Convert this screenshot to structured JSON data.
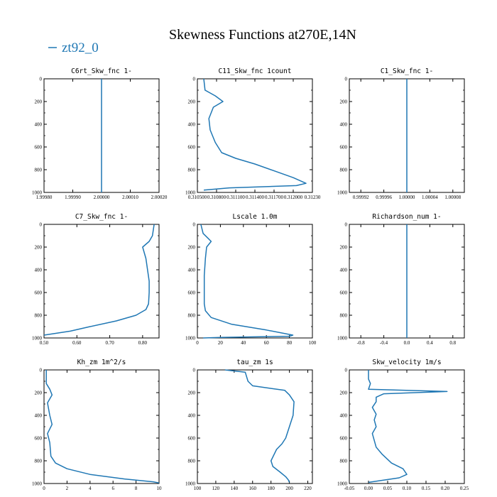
{
  "figure": {
    "title": "Skewness Functions at270E,14N",
    "legend": {
      "label": "zt92_0",
      "color": "#1f77b4"
    }
  },
  "chart_data": [
    {
      "type": "line",
      "title": "C6rt_Skw_fnc 1-",
      "xlim": [
        1.9998,
        2.0002
      ],
      "ylim": [
        1000,
        0
      ],
      "invert_y": true,
      "xticks": [
        "1.99980",
        "1.99990",
        "2.00000",
        "2.00010",
        "2.00020"
      ],
      "xtick_values": [
        1.9998,
        1.9999,
        2.0,
        2.0001,
        2.0002
      ],
      "yticks": [
        "0",
        "200",
        "400",
        "600",
        "800",
        "1000"
      ],
      "series": [
        {
          "x": [
            2.0,
            2.0
          ],
          "y": [
            0,
            1000
          ]
        }
      ]
    },
    {
      "type": "line",
      "title": "C11_Skw_fnc 1count",
      "xlim": [
        0.3105,
        0.3123
      ],
      "ylim": [
        1000,
        0
      ],
      "invert_y": true,
      "xticks": [
        "0.310500",
        "0.310800",
        "0.311100",
        "0.311400",
        "0.311700",
        "0.312000",
        "0.31230"
      ],
      "xtick_values": [
        0.3105,
        0.3108,
        0.3111,
        0.3114,
        0.3117,
        0.312,
        0.3123
      ],
      "yticks": [
        "0",
        "200",
        "400",
        "600",
        "800",
        "1000"
      ],
      "series": [
        {
          "x": [
            0.3106,
            0.31062,
            0.31078,
            0.3109,
            0.31075,
            0.31068,
            0.3107,
            0.31078,
            0.31088,
            0.3111,
            0.3114,
            0.3117,
            0.312,
            0.3122,
            0.31205,
            0.311,
            0.3106
          ],
          "y": [
            0,
            100,
            150,
            200,
            250,
            350,
            450,
            560,
            650,
            700,
            750,
            810,
            870,
            920,
            940,
            960,
            980
          ]
        }
      ]
    },
    {
      "type": "line",
      "title": "C1_Skw_fnc 1-",
      "xlim": [
        0.9999,
        1.0001
      ],
      "ylim": [
        1000,
        0
      ],
      "invert_y": true,
      "xticks": [
        "0.99992",
        "0.99996",
        "1.00000",
        "1.00004",
        "1.00008"
      ],
      "xtick_values": [
        0.99992,
        0.99996,
        1.0,
        1.00004,
        1.00008
      ],
      "yticks": [
        "0",
        "200",
        "400",
        "600",
        "800",
        "1000"
      ],
      "series": [
        {
          "x": [
            1.0,
            1.0
          ],
          "y": [
            0,
            1000
          ]
        }
      ]
    },
    {
      "type": "line",
      "title": "C7_Skw_fnc 1-",
      "xlim": [
        0.5,
        0.85
      ],
      "ylim": [
        1000,
        0
      ],
      "invert_y": true,
      "xticks": [
        "0.50",
        "0.60",
        "0.70",
        "0.80"
      ],
      "xtick_values": [
        0.5,
        0.6,
        0.7,
        0.8
      ],
      "yticks": [
        "0",
        "200",
        "400",
        "600",
        "800",
        "1000"
      ],
      "series": [
        {
          "x": [
            0.835,
            0.83,
            0.82,
            0.8,
            0.81,
            0.815,
            0.82,
            0.82,
            0.818,
            0.81,
            0.78,
            0.72,
            0.64,
            0.58,
            0.5
          ],
          "y": [
            0,
            100,
            150,
            200,
            300,
            400,
            500,
            600,
            700,
            750,
            800,
            850,
            900,
            940,
            975
          ]
        }
      ]
    },
    {
      "type": "line",
      "title": "Lscale 1.0m",
      "xlim": [
        0,
        100
      ],
      "ylim": [
        1000,
        0
      ],
      "invert_y": true,
      "xticks": [
        "0",
        "20",
        "40",
        "60",
        "80",
        "100"
      ],
      "xtick_values": [
        0,
        20,
        40,
        60,
        80,
        100
      ],
      "yticks": [
        "0",
        "200",
        "400",
        "600",
        "800",
        "1000"
      ],
      "series": [
        {
          "x": [
            3,
            5,
            9,
            12,
            8,
            7,
            6,
            6,
            6,
            7,
            12,
            30,
            60,
            83,
            80,
            20,
            5
          ],
          "y": [
            0,
            80,
            120,
            150,
            200,
            300,
            450,
            600,
            700,
            760,
            820,
            880,
            930,
            975,
            985,
            995,
            1000
          ]
        }
      ]
    },
    {
      "type": "line",
      "title": "Richardson_num 1-",
      "xlim": [
        -1.0,
        1.0
      ],
      "ylim": [
        1000,
        0
      ],
      "invert_y": true,
      "xticks": [
        "-0.8",
        "-0.4",
        "0.0",
        "0.4",
        "0.8"
      ],
      "xtick_values": [
        -0.8,
        -0.4,
        0.0,
        0.4,
        0.8
      ],
      "yticks": [
        "0",
        "200",
        "400",
        "600",
        "800",
        "1000"
      ],
      "series": [
        {
          "x": [
            0.0,
            0.0
          ],
          "y": [
            0,
            1000
          ]
        }
      ]
    },
    {
      "type": "line",
      "title": "Kh_zm 1m^2/s",
      "xlim": [
        0,
        10
      ],
      "ylim": [
        1000,
        0
      ],
      "invert_y": true,
      "xticks": [
        "0",
        "2",
        "4",
        "6",
        "8",
        "10"
      ],
      "xtick_values": [
        0,
        2,
        4,
        6,
        8,
        10
      ],
      "yticks": [
        "0",
        "200",
        "400",
        "600",
        "800",
        "1000"
      ],
      "series": [
        {
          "x": [
            0.2,
            0.2,
            0.5,
            0.7,
            0.3,
            0.5,
            0.7,
            0.3,
            0.5,
            0.6,
            1.0,
            2.0,
            4.0,
            7.0,
            9.5,
            10.0
          ],
          "y": [
            0,
            120,
            170,
            220,
            290,
            400,
            480,
            560,
            640,
            760,
            820,
            870,
            920,
            960,
            985,
            995
          ]
        }
      ]
    },
    {
      "type": "line",
      "title": "tau_zm 1s",
      "xlim": [
        100,
        225
      ],
      "ylim": [
        1000,
        0
      ],
      "invert_y": true,
      "xticks": [
        "100",
        "120",
        "140",
        "160",
        "180",
        "200",
        "220"
      ],
      "xtick_values": [
        100,
        120,
        140,
        160,
        180,
        200,
        220
      ],
      "yticks": [
        "0",
        "200",
        "400",
        "600",
        "800",
        "1000"
      ],
      "series": [
        {
          "x": [
            130,
            152,
            155,
            160,
            195,
            200,
            205,
            204,
            200,
            196,
            192,
            186,
            180,
            182,
            190,
            196,
            199,
            200
          ],
          "y": [
            0,
            20,
            100,
            140,
            180,
            220,
            280,
            400,
            500,
            600,
            650,
            700,
            800,
            850,
            900,
            940,
            970,
            990
          ]
        }
      ]
    },
    {
      "type": "line",
      "title": "Skw_velocity 1m/s",
      "xlim": [
        -0.05,
        0.25
      ],
      "ylim": [
        1000,
        0
      ],
      "invert_y": true,
      "xticks": [
        "-0.05",
        "0.00",
        "0.05",
        "0.10",
        "0.15",
        "0.20",
        "0.25"
      ],
      "xtick_values": [
        -0.05,
        0.0,
        0.05,
        0.1,
        0.15,
        0.2,
        0.25
      ],
      "yticks": [
        "0",
        "200",
        "400",
        "600",
        "800",
        "1000"
      ],
      "series": [
        {
          "x": [
            0.0,
            0.0,
            0.005,
            0.0,
            0.205,
            0.04,
            0.02,
            0.02,
            0.01,
            0.02,
            0.015,
            0.02,
            0.01,
            0.015,
            0.02,
            0.035,
            0.06,
            0.09,
            0.1,
            0.08,
            0.0
          ],
          "y": [
            0,
            80,
            120,
            170,
            190,
            210,
            240,
            280,
            330,
            390,
            440,
            500,
            560,
            620,
            680,
            740,
            820,
            870,
            920,
            950,
            990
          ]
        }
      ]
    }
  ]
}
